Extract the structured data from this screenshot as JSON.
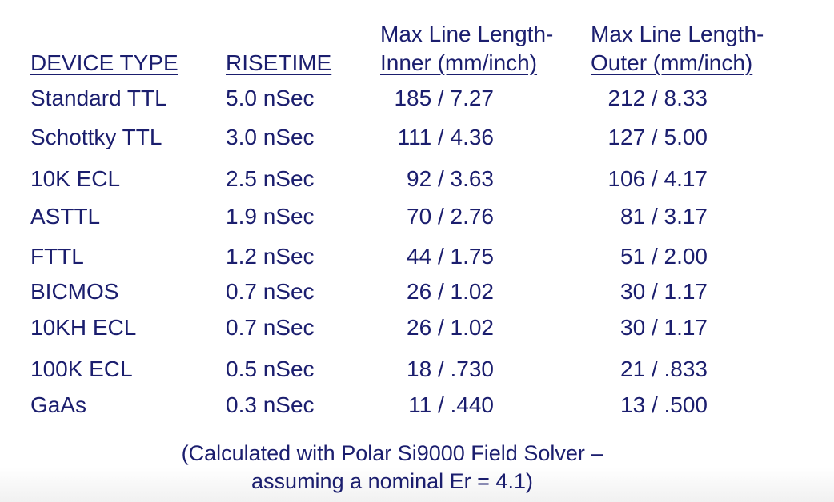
{
  "headers": {
    "device_type": "DEVICE TYPE",
    "risetime": "RISETIME",
    "inner_line1": "Max Line Length-",
    "inner_line2": "Inner (mm/inch)",
    "outer_line1": "Max Line Length-",
    "outer_line2": "Outer (mm/inch)"
  },
  "rows": [
    {
      "device": "Standard TTL",
      "risetime": "5.0 nSec",
      "inner": "185 / 7.27",
      "outer": "212 / 8.33"
    },
    {
      "device": "Schottky TTL",
      "risetime": "3.0 nSec",
      "inner": "111 / 4.36",
      "outer": "127 / 5.00"
    },
    {
      "device": "10K ECL",
      "risetime": "2.5 nSec",
      "inner": "92 / 3.63",
      "outer": "106 / 4.17"
    },
    {
      "device": "ASTTL",
      "risetime": "1.9 nSec",
      "inner": "70 / 2.76",
      "outer": "81 / 3.17"
    },
    {
      "device": "FTTL",
      "risetime": "1.2 nSec",
      "inner": "44 / 1.75",
      "outer": "51 / 2.00"
    },
    {
      "device": "BICMOS",
      "risetime": "0.7 nSec",
      "inner": "26 / 1.02",
      "outer": "30 / 1.17"
    },
    {
      "device": "10KH ECL",
      "risetime": "0.7 nSec",
      "inner": "26 / 1.02",
      "outer": "30 / 1.17"
    },
    {
      "device": "100K ECL",
      "risetime": "0.5 nSec",
      "inner": "18 / .730",
      "outer": "21 / .833"
    },
    {
      "device": "GaAs",
      "risetime": "0.3 nSec",
      "inner": "11 / .440",
      "outer": "13 / .500"
    }
  ],
  "footnote": {
    "line1": "(Calculated with Polar Si9000 Field Solver –",
    "line2": "assuming a nominal Er = 4.1)"
  },
  "colors": {
    "text": "#1b1e6e",
    "background": "#ffffff"
  }
}
